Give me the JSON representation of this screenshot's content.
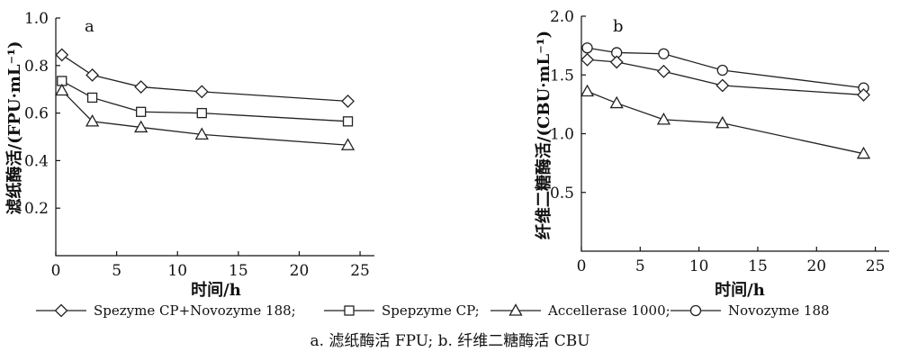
{
  "chart_data": [
    {
      "type": "line",
      "panel_label": "a",
      "xlabel": "时间/h",
      "ylabel": "滤纸酶活/(FPU·mL⁻¹)",
      "xlim": [
        0,
        25
      ],
      "ylim": [
        0,
        1.0
      ],
      "xticks": [
        "0",
        "5",
        "10",
        "15",
        "20",
        "25"
      ],
      "yticks": [
        "0.2",
        "0.4",
        "0.6",
        "0.8",
        "1.0"
      ],
      "x": [
        0.5,
        3,
        7,
        12,
        24
      ],
      "series": [
        {
          "name": "Spezyme CP+Novozyme 188",
          "marker": "diamond",
          "values": [
            0.845,
            0.76,
            0.71,
            0.69,
            0.65
          ]
        },
        {
          "name": "Spepzyme CP",
          "marker": "square",
          "values": [
            0.735,
            0.665,
            0.605,
            0.6,
            0.565
          ]
        },
        {
          "name": "Accellerase 1000",
          "marker": "triangle",
          "values": [
            0.695,
            0.565,
            0.54,
            0.51,
            0.465
          ]
        }
      ]
    },
    {
      "type": "line",
      "panel_label": "b",
      "xlabel": "时间/h",
      "ylabel": "纤维二糖酶活/(CBU·mL⁻¹)",
      "xlim": [
        0,
        25
      ],
      "ylim": [
        0,
        2.0
      ],
      "xticks": [
        "0",
        "5",
        "10",
        "15",
        "20",
        "25"
      ],
      "yticks": [
        "0.5",
        "1.0",
        "1.5",
        "2.0"
      ],
      "x": [
        0.5,
        3,
        7,
        12,
        24
      ],
      "series": [
        {
          "name": "Novozyme 188",
          "marker": "circle",
          "values": [
            1.73,
            1.69,
            1.68,
            1.54,
            1.39
          ]
        },
        {
          "name": "Spezyme CP+Novozyme 188",
          "marker": "diamond",
          "values": [
            1.63,
            1.61,
            1.53,
            1.41,
            1.33
          ]
        },
        {
          "name": "Accellerase 1000",
          "marker": "triangle",
          "values": [
            1.36,
            1.26,
            1.12,
            1.09,
            0.83
          ]
        }
      ]
    }
  ],
  "legend": [
    {
      "label": "Spezyme CP+Novozyme 188;",
      "marker": "diamond"
    },
    {
      "label": "Spepzyme CP;",
      "marker": "square"
    },
    {
      "label": "Accellerase 1000;",
      "marker": "triangle"
    },
    {
      "label": "Novozyme 188",
      "marker": "circle"
    }
  ],
  "caption": "a. 滤纸酶活 FPU; b. 纤维二糖酶活 CBU"
}
